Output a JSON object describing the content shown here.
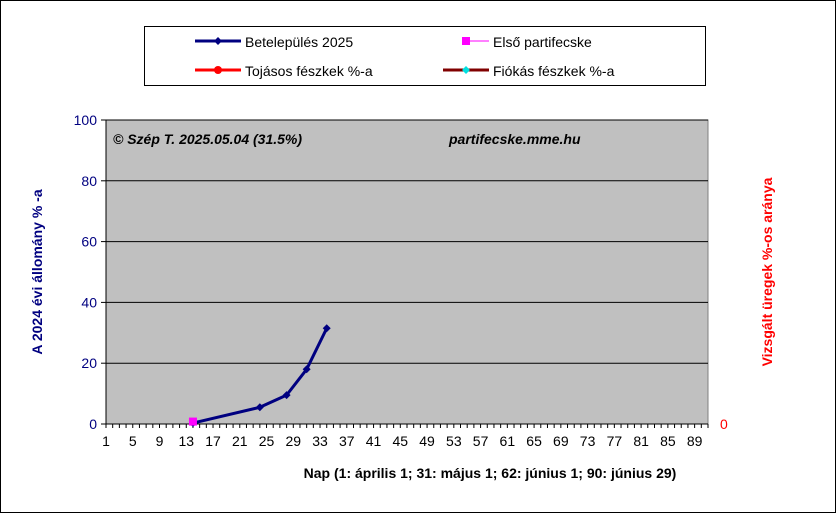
{
  "legend": {
    "items": [
      {
        "label": "Betelepülés 2025",
        "color": "#000080",
        "marker": "diamond"
      },
      {
        "label": "Első partifecske",
        "color": "#ff00ff",
        "marker": "square"
      },
      {
        "label": "Tojásos  fészkek %-a",
        "color": "#ff0000",
        "marker": "circle"
      },
      {
        "label": "Fiókás fészkek %-a",
        "color": "#800000",
        "marker": "diamond-cyan"
      }
    ]
  },
  "annotations": {
    "copyright": "© Szép T. 2025.05.04 (31.5%)",
    "website": "partifecske.mme.hu"
  },
  "chart_data": {
    "type": "line",
    "xlabel": "Nap (1: április 1; 31: május 1; 62: június 1; 90: június  29)",
    "ylabel": "A 2024 évi állomány % -a",
    "ylabel_right": "Vizsgált üregek %-os aránya",
    "xlim": [
      1,
      90
    ],
    "ylim": [
      0,
      100
    ],
    "x_ticks": [
      "1",
      "5",
      "9",
      "13",
      "17",
      "21",
      "25",
      "29",
      "33",
      "37",
      "41",
      "45",
      "49",
      "53",
      "57",
      "61",
      "65",
      "69",
      "73",
      "77",
      "81",
      "85",
      "89"
    ],
    "y_ticks": [
      "0",
      "20",
      "40",
      "60",
      "80",
      "100"
    ],
    "y2_ticks": [
      "0"
    ],
    "grid": "horizontal",
    "plot_background": "#c0c0c0",
    "series": [
      {
        "name": "Betelepülés 2025",
        "color": "#000080",
        "points": [
          [
            14,
            0.3
          ],
          [
            24,
            5.5
          ],
          [
            28,
            9.5
          ],
          [
            31,
            18
          ],
          [
            34,
            31.5
          ]
        ]
      },
      {
        "name": "Első partifecske",
        "color": "#ff00ff",
        "points": [
          [
            14,
            0.8
          ]
        ]
      },
      {
        "name": "Tojásos  fészkek %-a",
        "color": "#ff0000",
        "points": []
      },
      {
        "name": "Fiókás fészkek %-a",
        "color": "#800000",
        "points": []
      }
    ]
  }
}
